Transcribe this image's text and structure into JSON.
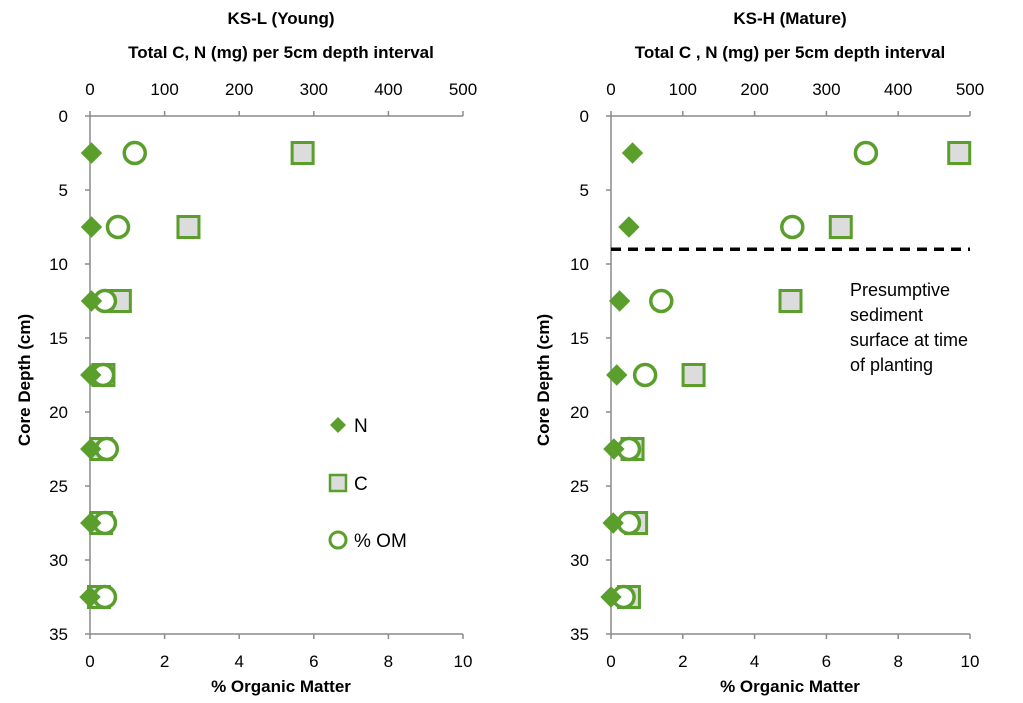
{
  "colors": {
    "green": "#5a9e2c",
    "square_fill": "#dcdcdc",
    "axis": "#8a8a8a",
    "dash": "#000000"
  },
  "chart_data": [
    {
      "type": "scatter",
      "title": "KS-L (Young)",
      "subtitle": "Total C, N (mg) per 5cm depth interval",
      "ylabel": "Core Depth (cm)",
      "xlabel": "% Organic Matter",
      "top_axis": {
        "range": [
          0,
          500
        ],
        "ticks": [
          "0",
          "100",
          "200",
          "300",
          "400",
          "500"
        ]
      },
      "bottom_axis": {
        "range": [
          0,
          10
        ],
        "ticks": [
          "0",
          "2",
          "4",
          "6",
          "8",
          "10"
        ]
      },
      "y_axis": {
        "range": [
          0,
          35
        ],
        "reversed": true,
        "ticks": [
          "0",
          "5",
          "10",
          "15",
          "20",
          "25",
          "30",
          "35"
        ]
      },
      "grid": false,
      "legend": {
        "placement": "center-right",
        "items": [
          "N",
          "C",
          "% OM"
        ]
      },
      "series": [
        {
          "name": "N",
          "marker": "diamond",
          "axis": "top",
          "points": [
            [
              2,
              2.5
            ],
            [
              2,
              7.5
            ],
            [
              2,
              12.5
            ],
            [
              1,
              17.5
            ],
            [
              1,
              22.5
            ],
            [
              1,
              27.5
            ],
            [
              0,
              32.5
            ]
          ]
        },
        {
          "name": "C",
          "marker": "square",
          "axis": "top",
          "points": [
            [
              285,
              2.5
            ],
            [
              132,
              7.5
            ],
            [
              40,
              12.5
            ],
            [
              18,
              17.5
            ],
            [
              15,
              22.5
            ],
            [
              15,
              27.5
            ],
            [
              12,
              32.5
            ]
          ]
        },
        {
          "name": "% OM",
          "marker": "circle",
          "axis": "bottom",
          "points": [
            [
              1.2,
              2.5
            ],
            [
              0.75,
              7.5
            ],
            [
              0.4,
              12.5
            ],
            [
              0.35,
              17.5
            ],
            [
              0.45,
              22.5
            ],
            [
              0.4,
              27.5
            ],
            [
              0.4,
              32.5
            ]
          ]
        }
      ]
    },
    {
      "type": "scatter",
      "title": "KS-H (Mature)",
      "subtitle": "Total C , N (mg) per 5cm depth interval",
      "ylabel": "Core Depth (cm)",
      "xlabel": "% Organic Matter",
      "top_axis": {
        "range": [
          0,
          500
        ],
        "ticks": [
          "0",
          "100",
          "200",
          "300",
          "400",
          "500"
        ]
      },
      "bottom_axis": {
        "range": [
          0,
          10
        ],
        "ticks": [
          "0",
          "2",
          "4",
          "6",
          "8",
          "10"
        ]
      },
      "y_axis": {
        "range": [
          0,
          35
        ],
        "reversed": true,
        "ticks": [
          "0",
          "5",
          "10",
          "15",
          "20",
          "25",
          "30",
          "35"
        ]
      },
      "grid": false,
      "reference_line": {
        "y": 9,
        "style": "dashed"
      },
      "annotation": [
        "Presumptive",
        "sediment",
        "surface at time",
        "of planting"
      ],
      "series": [
        {
          "name": "N",
          "marker": "diamond",
          "axis": "top",
          "points": [
            [
              30,
              2.5
            ],
            [
              25,
              7.5
            ],
            [
              12,
              12.5
            ],
            [
              8,
              17.5
            ],
            [
              4,
              22.5
            ],
            [
              3,
              27.5
            ],
            [
              0,
              32.5
            ]
          ]
        },
        {
          "name": "C",
          "marker": "square",
          "axis": "top",
          "points": [
            [
              485,
              2.5
            ],
            [
              320,
              7.5
            ],
            [
              250,
              12.5
            ],
            [
              115,
              17.5
            ],
            [
              30,
              22.5
            ],
            [
              35,
              27.5
            ],
            [
              25,
              32.5
            ]
          ]
        },
        {
          "name": "% OM",
          "marker": "circle",
          "axis": "bottom",
          "points": [
            [
              7.1,
              2.5
            ],
            [
              5.05,
              7.5
            ],
            [
              1.4,
              12.5
            ],
            [
              0.95,
              17.5
            ],
            [
              0.5,
              22.5
            ],
            [
              0.5,
              27.5
            ],
            [
              0.35,
              32.5
            ]
          ]
        }
      ]
    }
  ]
}
